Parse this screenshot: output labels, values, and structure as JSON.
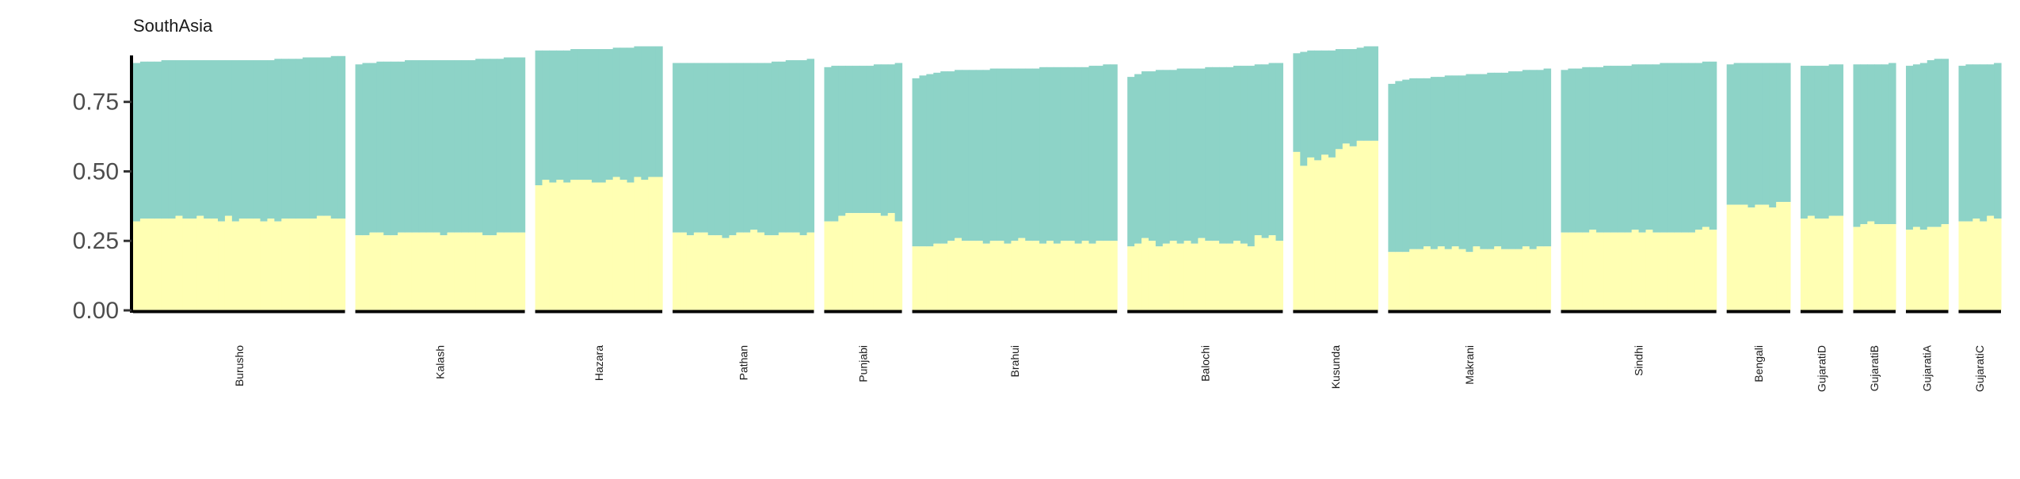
{
  "chart_data": {
    "type": "bar",
    "title": "SouthAsia",
    "xlabel": "",
    "ylabel": "",
    "ylim": [
      0,
      0.95
    ],
    "yticks": [
      0.0,
      0.25,
      0.5,
      0.75
    ],
    "ytick_labels": [
      "0.00",
      "0.25",
      "0.50",
      "0.75"
    ],
    "grid": false,
    "stacked": true,
    "colors": {
      "component_1": "#ffffb3",
      "component_2": "#8dd3c7"
    },
    "groups": [
      {
        "name": "Burusho",
        "component_1": [
          0.32,
          0.33,
          0.33,
          0.33,
          0.33,
          0.33,
          0.34,
          0.33,
          0.33,
          0.34,
          0.33,
          0.33,
          0.32,
          0.34,
          0.32,
          0.33,
          0.33,
          0.33,
          0.32,
          0.33,
          0.32,
          0.33,
          0.33,
          0.33,
          0.33,
          0.33,
          0.34,
          0.34,
          0.33,
          0.33
        ],
        "total": [
          0.89,
          0.895,
          0.895,
          0.895,
          0.9,
          0.9,
          0.9,
          0.9,
          0.9,
          0.9,
          0.9,
          0.9,
          0.9,
          0.9,
          0.9,
          0.9,
          0.9,
          0.9,
          0.9,
          0.9,
          0.905,
          0.905,
          0.905,
          0.905,
          0.91,
          0.91,
          0.91,
          0.91,
          0.915,
          0.915
        ]
      },
      {
        "name": "Kalash",
        "component_1": [
          0.27,
          0.27,
          0.28,
          0.28,
          0.27,
          0.27,
          0.28,
          0.28,
          0.28,
          0.28,
          0.28,
          0.28,
          0.27,
          0.28,
          0.28,
          0.28,
          0.28,
          0.28,
          0.27,
          0.27,
          0.28,
          0.28,
          0.28,
          0.28
        ],
        "total": [
          0.885,
          0.89,
          0.89,
          0.895,
          0.895,
          0.895,
          0.895,
          0.9,
          0.9,
          0.9,
          0.9,
          0.9,
          0.9,
          0.9,
          0.9,
          0.9,
          0.9,
          0.905,
          0.905,
          0.905,
          0.905,
          0.91,
          0.91,
          0.91
        ]
      },
      {
        "name": "Hazara",
        "component_1": [
          0.45,
          0.47,
          0.46,
          0.47,
          0.46,
          0.47,
          0.47,
          0.47,
          0.46,
          0.46,
          0.47,
          0.48,
          0.47,
          0.46,
          0.48,
          0.47,
          0.48,
          0.48
        ],
        "total": [
          0.935,
          0.935,
          0.935,
          0.935,
          0.935,
          0.94,
          0.94,
          0.94,
          0.94,
          0.94,
          0.94,
          0.945,
          0.945,
          0.945,
          0.95,
          0.95,
          0.95,
          0.95
        ]
      },
      {
        "name": "Pathan",
        "component_1": [
          0.28,
          0.28,
          0.27,
          0.28,
          0.28,
          0.27,
          0.27,
          0.26,
          0.27,
          0.28,
          0.28,
          0.29,
          0.28,
          0.27,
          0.27,
          0.28,
          0.28,
          0.28,
          0.27,
          0.28
        ],
        "total": [
          0.89,
          0.89,
          0.89,
          0.89,
          0.89,
          0.89,
          0.89,
          0.89,
          0.89,
          0.89,
          0.89,
          0.89,
          0.89,
          0.89,
          0.895,
          0.895,
          0.9,
          0.9,
          0.9,
          0.905
        ]
      },
      {
        "name": "Punjabi",
        "component_1": [
          0.32,
          0.32,
          0.34,
          0.35,
          0.35,
          0.35,
          0.35,
          0.35,
          0.34,
          0.35,
          0.32
        ],
        "total": [
          0.875,
          0.88,
          0.88,
          0.88,
          0.88,
          0.88,
          0.88,
          0.885,
          0.885,
          0.885,
          0.89
        ]
      },
      {
        "name": "Brahui",
        "component_1": [
          0.23,
          0.23,
          0.23,
          0.24,
          0.24,
          0.25,
          0.26,
          0.25,
          0.25,
          0.25,
          0.24,
          0.25,
          0.25,
          0.24,
          0.25,
          0.26,
          0.25,
          0.25,
          0.24,
          0.25,
          0.24,
          0.25,
          0.25,
          0.24,
          0.25,
          0.24,
          0.25,
          0.25,
          0.25
        ],
        "total": [
          0.835,
          0.845,
          0.85,
          0.855,
          0.86,
          0.86,
          0.865,
          0.865,
          0.865,
          0.865,
          0.865,
          0.87,
          0.87,
          0.87,
          0.87,
          0.87,
          0.87,
          0.87,
          0.875,
          0.875,
          0.875,
          0.875,
          0.875,
          0.875,
          0.875,
          0.88,
          0.88,
          0.885,
          0.885
        ]
      },
      {
        "name": "Balochi",
        "component_1": [
          0.23,
          0.24,
          0.26,
          0.25,
          0.23,
          0.24,
          0.25,
          0.24,
          0.25,
          0.24,
          0.26,
          0.25,
          0.25,
          0.24,
          0.24,
          0.25,
          0.24,
          0.23,
          0.27,
          0.26,
          0.27,
          0.25
        ],
        "total": [
          0.84,
          0.85,
          0.86,
          0.86,
          0.865,
          0.865,
          0.865,
          0.87,
          0.87,
          0.87,
          0.87,
          0.875,
          0.875,
          0.875,
          0.875,
          0.88,
          0.88,
          0.88,
          0.885,
          0.885,
          0.89,
          0.89
        ]
      },
      {
        "name": "Kusunda",
        "component_1": [
          0.57,
          0.52,
          0.55,
          0.54,
          0.56,
          0.55,
          0.58,
          0.6,
          0.59,
          0.61,
          0.61,
          0.61
        ],
        "total": [
          0.925,
          0.93,
          0.935,
          0.935,
          0.935,
          0.935,
          0.94,
          0.94,
          0.94,
          0.945,
          0.95,
          0.95
        ]
      },
      {
        "name": "Makrani",
        "component_1": [
          0.21,
          0.21,
          0.21,
          0.22,
          0.22,
          0.23,
          0.22,
          0.23,
          0.22,
          0.23,
          0.22,
          0.21,
          0.23,
          0.22,
          0.22,
          0.23,
          0.22,
          0.22,
          0.22,
          0.23,
          0.22,
          0.23,
          0.23
        ],
        "total": [
          0.815,
          0.825,
          0.83,
          0.835,
          0.835,
          0.835,
          0.84,
          0.84,
          0.845,
          0.845,
          0.845,
          0.85,
          0.85,
          0.85,
          0.855,
          0.855,
          0.855,
          0.86,
          0.86,
          0.865,
          0.865,
          0.865,
          0.87
        ]
      },
      {
        "name": "Sindhi",
        "component_1": [
          0.28,
          0.28,
          0.28,
          0.28,
          0.29,
          0.28,
          0.28,
          0.28,
          0.28,
          0.28,
          0.29,
          0.28,
          0.29,
          0.28,
          0.28,
          0.28,
          0.28,
          0.28,
          0.28,
          0.29,
          0.3,
          0.29
        ],
        "total": [
          0.865,
          0.87,
          0.87,
          0.875,
          0.875,
          0.875,
          0.88,
          0.88,
          0.88,
          0.88,
          0.885,
          0.885,
          0.885,
          0.885,
          0.89,
          0.89,
          0.89,
          0.89,
          0.89,
          0.89,
          0.895,
          0.895
        ]
      },
      {
        "name": "Bengali",
        "component_1": [
          0.38,
          0.38,
          0.38,
          0.37,
          0.38,
          0.38,
          0.37,
          0.39,
          0.39
        ],
        "total": [
          0.885,
          0.89,
          0.89,
          0.89,
          0.89,
          0.89,
          0.89,
          0.89,
          0.89
        ]
      },
      {
        "name": "GujaratiD",
        "component_1": [
          0.33,
          0.34,
          0.33,
          0.33,
          0.34,
          0.34
        ],
        "total": [
          0.88,
          0.88,
          0.88,
          0.88,
          0.885,
          0.885
        ]
      },
      {
        "name": "GujaratiB",
        "component_1": [
          0.3,
          0.31,
          0.32,
          0.31,
          0.31,
          0.31
        ],
        "total": [
          0.885,
          0.885,
          0.885,
          0.885,
          0.885,
          0.89
        ]
      },
      {
        "name": "GujaratiA",
        "component_1": [
          0.29,
          0.3,
          0.29,
          0.3,
          0.3,
          0.31
        ],
        "total": [
          0.88,
          0.885,
          0.89,
          0.9,
          0.905,
          0.905
        ]
      },
      {
        "name": "GujaratiC",
        "component_1": [
          0.32,
          0.32,
          0.33,
          0.32,
          0.34,
          0.33
        ],
        "total": [
          0.88,
          0.885,
          0.885,
          0.885,
          0.885,
          0.89
        ]
      }
    ]
  }
}
